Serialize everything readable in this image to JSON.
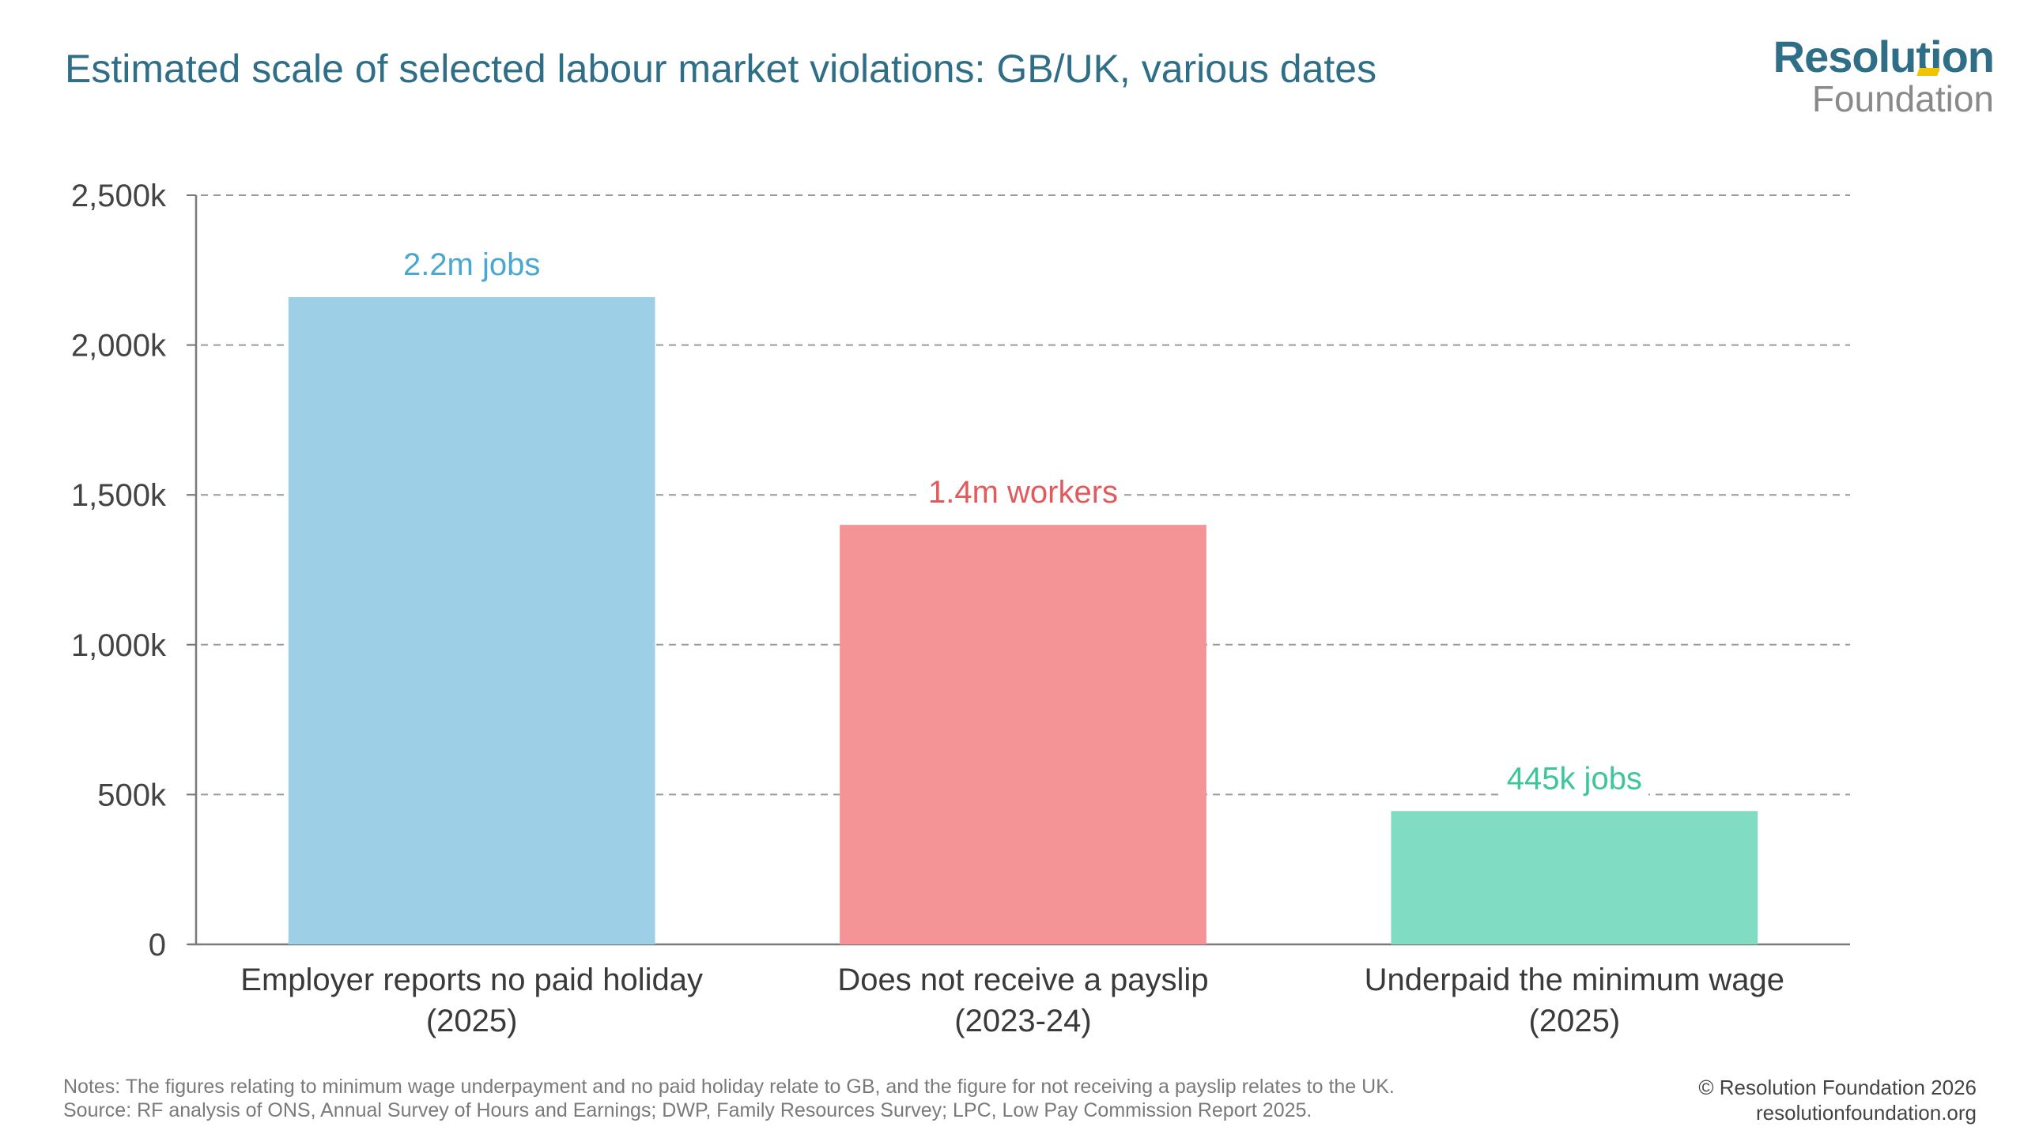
{
  "title": "Estimated scale of selected labour market violations: GB/UK, various dates",
  "logo": {
    "top": "Resolution",
    "bottom": "Foundation"
  },
  "colors": {
    "title": "#2e6e86",
    "bar_1": "#9dd0e6",
    "bar_2": "#f49496",
    "bar_3": "#80dcc2",
    "label_1": "#4aa7d0",
    "label_2": "#e15a5c",
    "label_3": "#3cc69c",
    "accent": "#f2c300"
  },
  "chart_data": {
    "type": "bar",
    "categories": [
      [
        "Employer reports no paid holiday",
        "(2025)"
      ],
      [
        "Does not receive a payslip",
        "(2023-24)"
      ],
      [
        "Underpaid the minimum wage",
        "(2025)"
      ]
    ],
    "values": [
      2160,
      1400,
      445
    ],
    "data_labels": [
      "2.2m jobs",
      "1.4m workers",
      "445k jobs"
    ],
    "ylim": [
      0,
      2500
    ],
    "yticks": [
      0,
      500,
      1000,
      1500,
      2000,
      2500
    ],
    "ytick_labels": [
      "0",
      "500k",
      "1,000k",
      "1,500k",
      "2,000k",
      "2,500k"
    ],
    "xlabel": "",
    "ylabel": "",
    "grid": true
  },
  "notes": {
    "line1": "Notes: The figures relating to minimum wage underpayment and no paid holiday relate to GB, and the figure for not receiving a payslip relates to the UK.",
    "line2": "Source: RF analysis of ONS, Annual Survey of Hours and Earnings; DWP, Family Resources Survey; LPC, Low Pay Commission Report 2025."
  },
  "credit": {
    "line1": "© Resolution Foundation 2026",
    "line2": "resolutionfoundation.org"
  }
}
